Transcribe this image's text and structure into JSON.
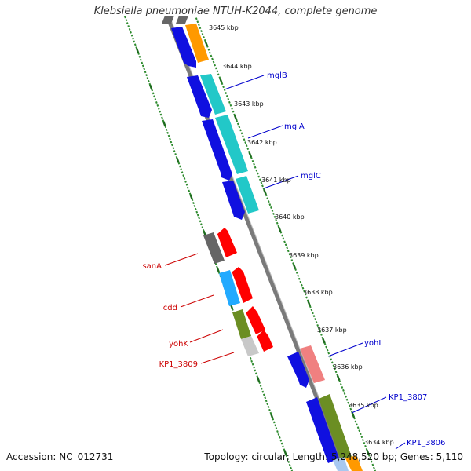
{
  "title": "Klebsiella pneumoniae NTUH-K2044, complete genome",
  "footer": {
    "accession": "Accession: NC_012731",
    "topology": "Topology: circular; Length: 5,248,520 bp; Genes: 5,110"
  },
  "colors": {
    "background": "#ffffff",
    "backbone": "#808080",
    "tick_dots": "#2e8b2e",
    "tick_major": "#1e6b1e",
    "forward_label": "#0000cc",
    "reverse_label": "#cc0000",
    "cds_forward": "#1010e0",
    "cds_reverse": "#ff0000",
    "gc_orange": "#ff9900",
    "gc_cyan": "#22c8c8",
    "gc_gray": "#666666",
    "gc_sky": "#22aaff",
    "gc_olive": "#6b8e23",
    "gc_lightgray": "#c8c8c8",
    "gc_pink": "#f08080"
  },
  "kbp_ticks": [
    {
      "label": "3645 kbp"
    },
    {
      "label": "3644 kbp"
    },
    {
      "label": "3643 kbp"
    },
    {
      "label": "3642 kbp"
    },
    {
      "label": "3641 kbp"
    },
    {
      "label": "3640 kbp"
    },
    {
      "label": "3639 kbp"
    },
    {
      "label": "3638 kbp"
    },
    {
      "label": "3637 kbp"
    },
    {
      "label": "3636 kbp"
    },
    {
      "label": "3635 kbp"
    },
    {
      "label": "3634 kbp"
    }
  ],
  "genes_forward": [
    {
      "label": "mglB"
    },
    {
      "label": "mglA"
    },
    {
      "label": "mglC"
    },
    {
      "label": "yohI"
    },
    {
      "label": "KP1_3807"
    },
    {
      "label": "KP1_3806"
    }
  ],
  "genes_reverse": [
    {
      "label": "sanA"
    },
    {
      "label": "cdd"
    },
    {
      "label": "yohK"
    },
    {
      "label": "KP1_3809"
    }
  ]
}
